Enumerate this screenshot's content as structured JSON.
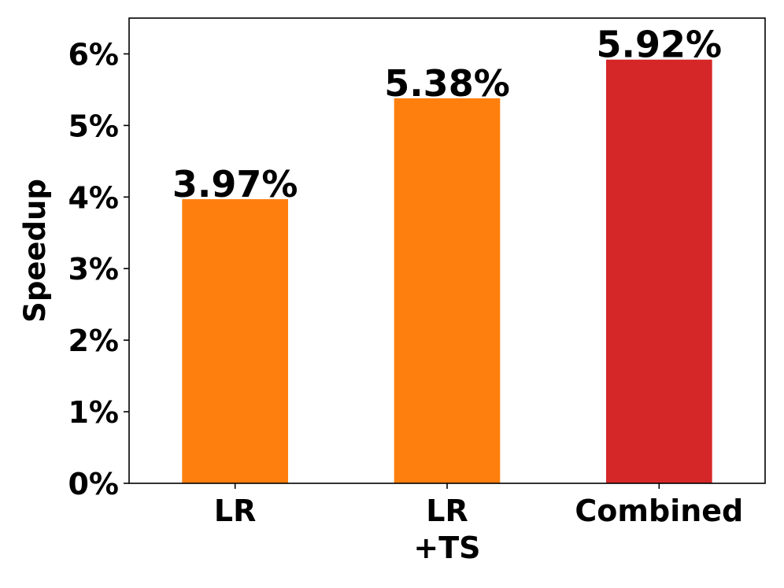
{
  "chart_data": {
    "type": "bar",
    "categories": [
      [
        "LR"
      ],
      [
        "LR",
        "+TS"
      ],
      [
        "Combined"
      ]
    ],
    "values": [
      3.97,
      5.38,
      5.92
    ],
    "value_labels": [
      "3.97%",
      "5.38%",
      "5.92%"
    ],
    "colors": [
      "#ff7f0e",
      "#ff7f0e",
      "#d62728"
    ],
    "ylabel": "Speedup",
    "ylim": [
      0,
      6.5
    ],
    "yticks": [
      0,
      1,
      2,
      3,
      4,
      5,
      6
    ],
    "ytick_labels": [
      "0%",
      "1%",
      "2%",
      "3%",
      "4%",
      "5%",
      "6%"
    ],
    "grid": false,
    "legend": "none"
  }
}
